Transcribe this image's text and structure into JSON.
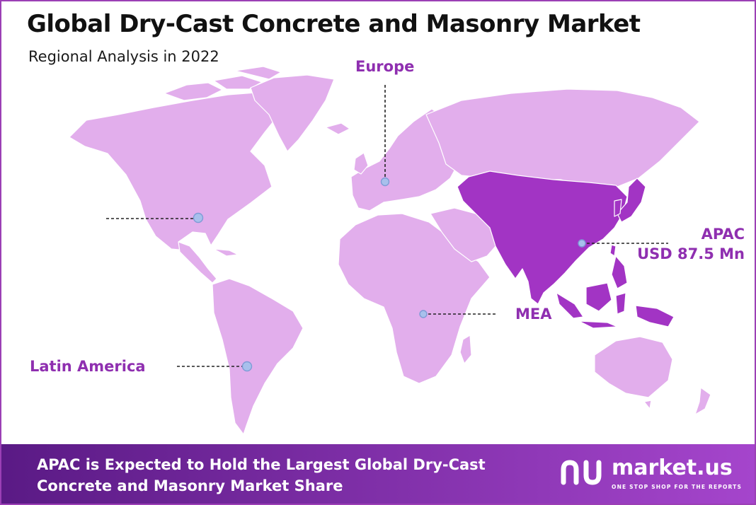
{
  "title": "Global Dry-Cast Concrete and Masonry Market",
  "subtitle": "Regional Analysis in 2022",
  "colors": {
    "land": "#e2aeec",
    "highlight": "#a234c4",
    "label": "#8f2fb0",
    "marker": "#a8c0ec",
    "footer_start": "#5a1a85",
    "footer_end": "#a545cc"
  },
  "regions": {
    "europe": {
      "label": "Europe",
      "highlighted": false
    },
    "north_america": {
      "label": "",
      "highlighted": false
    },
    "latin_america": {
      "label": "Latin America",
      "highlighted": false
    },
    "mea": {
      "label": "MEA",
      "highlighted": false
    },
    "apac": {
      "label": "APAC",
      "value": "USD 87.5 Mn",
      "highlighted": true
    }
  },
  "footer": {
    "headline": "APAC is Expected to Hold the Largest Global Dry-Cast Concrete and Masonry Market Share"
  },
  "brand": {
    "name": "market.us",
    "tagline": "ONE STOP SHOP FOR THE REPORTS",
    "logo_icon": "market-us-logo-icon"
  }
}
